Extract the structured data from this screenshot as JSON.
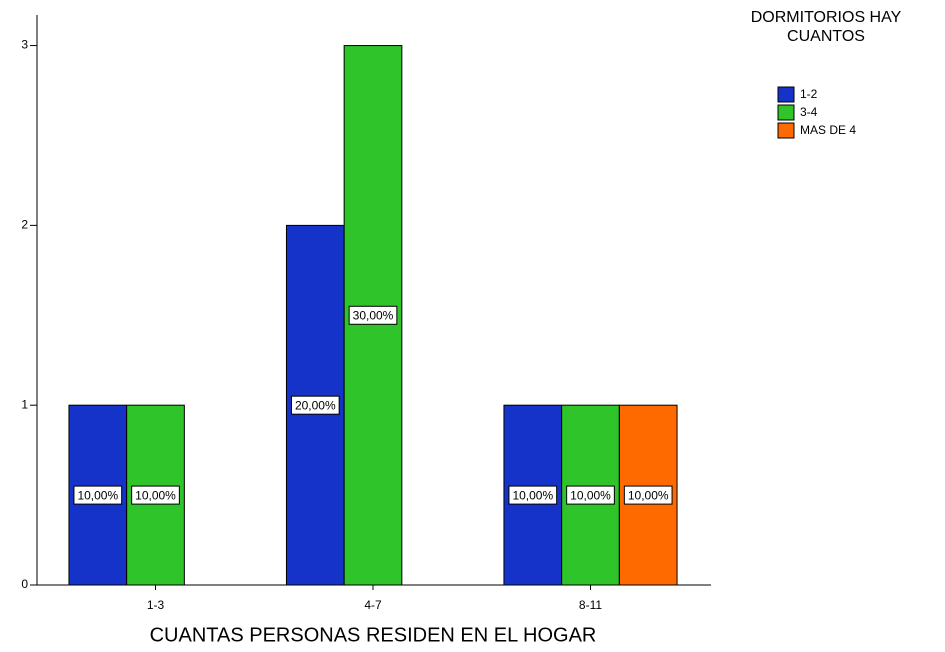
{
  "chart_data": {
    "type": "bar",
    "x_label": "CUANTAS PERSONAS RESIDEN EN EL HOGAR",
    "legend_title": [
      "DORMITORIOS HAY",
      "CUANTOS"
    ],
    "categories": [
      "1-3",
      "4-7",
      "8-11"
    ],
    "series": [
      {
        "name": "1-2",
        "color": "#1533c9",
        "values": [
          1,
          2,
          1
        ],
        "data_labels": [
          "10,00%",
          "20,00%",
          "10,00%"
        ]
      },
      {
        "name": "3-4",
        "color": "#2ec42a",
        "values": [
          1,
          3,
          1
        ],
        "data_labels": [
          "10,00%",
          "30,00%",
          "10,00%"
        ]
      },
      {
        "name": "MAS DE 4",
        "color": "#ff6a00",
        "values": [
          null,
          null,
          1
        ],
        "data_labels": [
          null,
          null,
          "10,00%"
        ]
      }
    ],
    "ylim": [
      0,
      3.17
    ],
    "yticks": [
      0,
      1,
      2,
      3
    ],
    "grid": false,
    "legend": "right"
  }
}
